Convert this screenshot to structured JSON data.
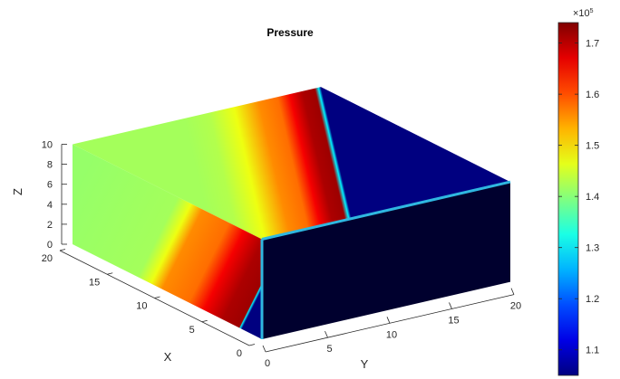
{
  "chart_data": {
    "type": "heatmap",
    "subtype": "3d-volume-slice",
    "title": "Pressure",
    "xlabel": "X",
    "ylabel": "Y",
    "zlabel": "Z",
    "x_ticks": [
      "0",
      "5",
      "10",
      "15",
      "20"
    ],
    "y_ticks": [
      "0",
      "5",
      "10",
      "15",
      "20"
    ],
    "z_ticks": [
      "0",
      "2",
      "4",
      "6",
      "8",
      "10"
    ],
    "xlim": [
      0,
      20
    ],
    "ylim": [
      0,
      20
    ],
    "zlim": [
      0,
      10
    ],
    "colorbar": {
      "exponent_label": "×10",
      "exponent": "5",
      "ticks": [
        "1.1",
        "1.2",
        "1.3",
        "1.4",
        "1.5",
        "1.6",
        "1.7"
      ],
      "range": [
        1.05,
        1.74
      ],
      "colormap": "jet"
    },
    "pressure_profile_along_y": {
      "y": [
        0,
        9,
        11,
        13,
        15,
        16.5,
        17.5,
        18.5,
        19.5,
        19.8,
        20
      ],
      "value": [
        1.42,
        1.42,
        1.43,
        1.47,
        1.56,
        1.58,
        1.66,
        1.71,
        1.72,
        1.3,
        1.05
      ]
    }
  }
}
